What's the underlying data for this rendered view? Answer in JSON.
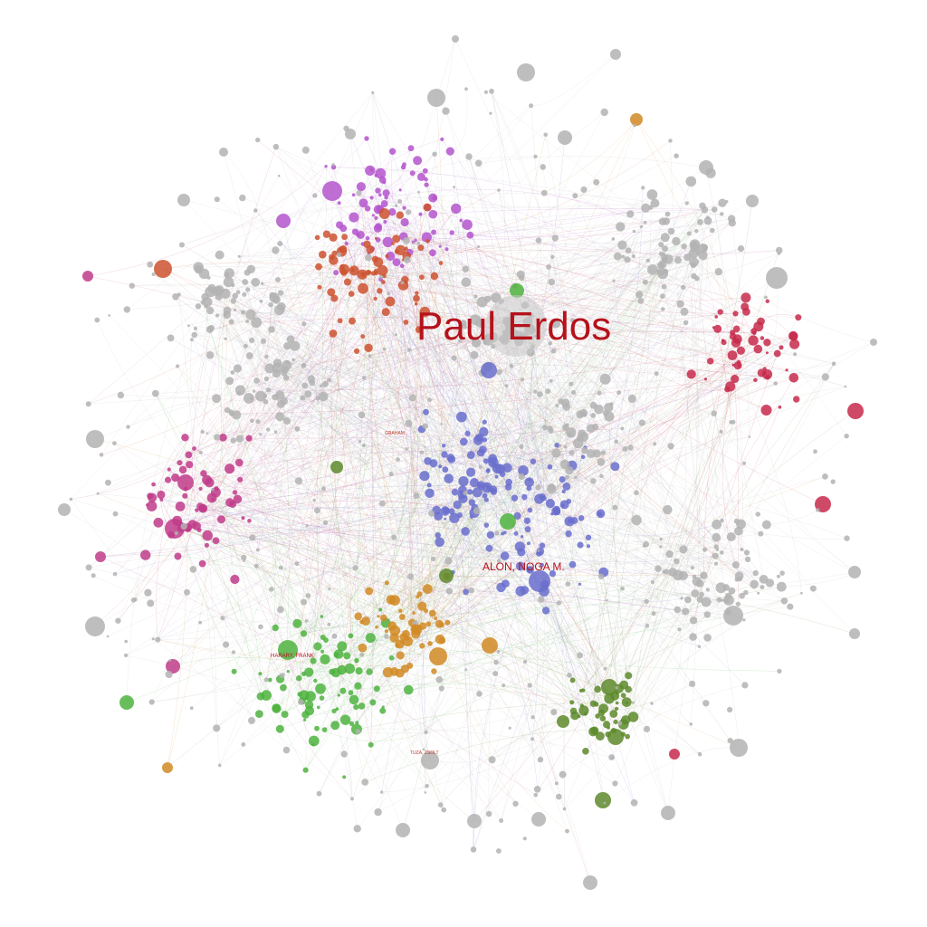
{
  "graph": {
    "labels": {
      "main": "Paul Erdos",
      "secondary": "ALON, NOGA M.",
      "tertiary": "HARARY, FRANK",
      "minor1": "TUZA, ZSOLT",
      "minor2": "GRAHAM"
    },
    "community_colors": {
      "gray": "#b3b3b3",
      "blue": "#6a6fcd",
      "green": "#4fb33f",
      "olive": "#5d8a2b",
      "orange": "#d18a25",
      "purple": "#b455cc",
      "red_orange": "#cc5230",
      "crimson": "#c72a4b",
      "magenta": "#c03c8a"
    }
  }
}
